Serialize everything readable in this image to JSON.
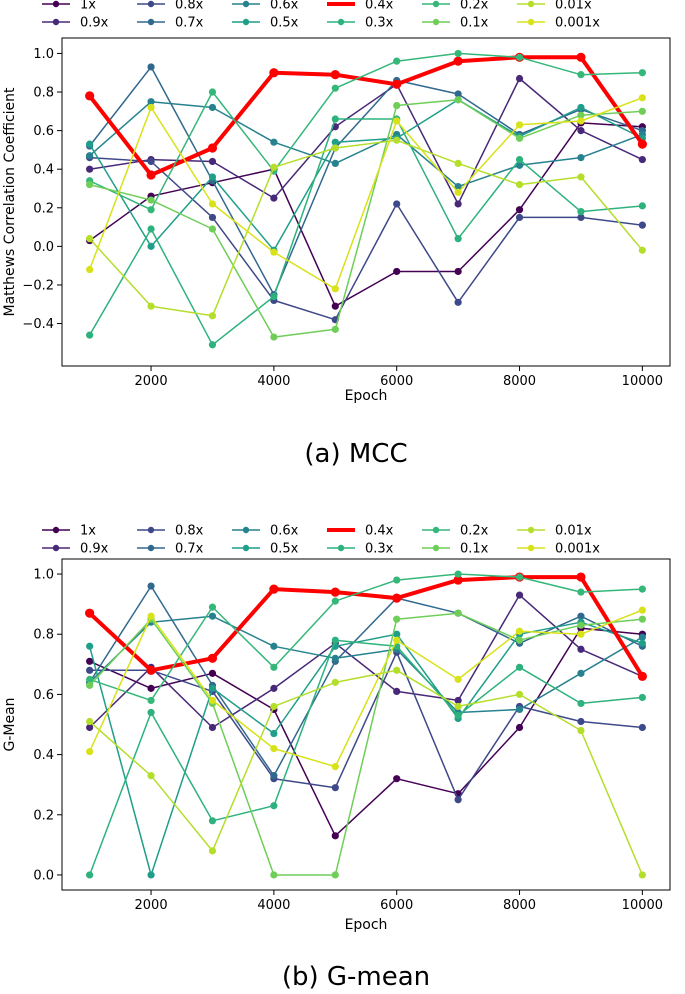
{
  "chart_data": [
    {
      "type": "line",
      "caption": "(a) MCC",
      "xlabel": "Epoch",
      "ylabel": "Matthews Correlation Coefficient",
      "xlim": [
        550,
        10450
      ],
      "ylim": [
        -0.62,
        1.08
      ],
      "xticks": [
        2000,
        4000,
        6000,
        8000,
        10000
      ],
      "xtick_labels": [
        "2000",
        "4000",
        "6000",
        "8000",
        "10000"
      ],
      "yticks": [
        -0.4,
        -0.2,
        0.0,
        0.2,
        0.4,
        0.6,
        0.8,
        1.0
      ],
      "ytick_labels": [
        "−0.4",
        "−0.2",
        "0.0",
        "0.2",
        "0.4",
        "0.6",
        "0.8",
        "1.0"
      ],
      "x": [
        1000,
        2000,
        3000,
        4000,
        5000,
        6000,
        7000,
        8000,
        9000,
        10000
      ],
      "legend_position": "top",
      "series": [
        {
          "name": "1x",
          "color": "#440154",
          "values": [
            0.03,
            0.26,
            0.33,
            0.4,
            -0.31,
            -0.13,
            -0.13,
            0.19,
            0.64,
            0.62
          ]
        },
        {
          "name": "0.9x",
          "color": "#482878",
          "values": [
            0.4,
            0.45,
            0.44,
            0.25,
            0.62,
            0.84,
            0.22,
            0.87,
            0.6,
            0.45
          ]
        },
        {
          "name": "0.8x",
          "color": "#3e4989",
          "values": [
            0.46,
            0.44,
            0.15,
            -0.28,
            -0.38,
            0.22,
            -0.29,
            0.15,
            0.15,
            0.11
          ]
        },
        {
          "name": "0.7x",
          "color": "#31688e",
          "values": [
            0.52,
            0.93,
            0.34,
            -0.25,
            0.51,
            0.86,
            0.79,
            0.58,
            0.71,
            0.6
          ]
        },
        {
          "name": "0.6x",
          "color": "#26828e",
          "values": [
            0.47,
            0.75,
            0.72,
            0.54,
            0.43,
            0.58,
            0.31,
            0.42,
            0.46,
            0.58
          ]
        },
        {
          "name": "0.5x",
          "color": "#1f9e89",
          "values": [
            0.53,
            0.0,
            0.36,
            -0.02,
            0.54,
            0.56,
            0.76,
            0.57,
            0.72,
            0.56
          ]
        },
        {
          "name": "0.4x",
          "color": "#ff0000",
          "values": [
            0.78,
            0.37,
            0.51,
            0.9,
            0.89,
            0.84,
            0.96,
            0.98,
            0.98,
            0.53
          ]
        },
        {
          "name": "0.3x",
          "color": "#2db27d",
          "values": [
            -0.46,
            0.09,
            -0.51,
            -0.26,
            0.66,
            0.66,
            0.04,
            0.45,
            0.18,
            0.21
          ]
        },
        {
          "name": "0.2x",
          "color": "#35b779",
          "values": [
            0.34,
            0.19,
            0.8,
            0.39,
            0.82,
            0.96,
            1.0,
            0.98,
            0.89,
            0.9
          ]
        },
        {
          "name": "0.1x",
          "color": "#6ece58",
          "values": [
            0.32,
            0.24,
            0.09,
            -0.47,
            -0.43,
            0.73,
            0.76,
            0.56,
            0.68,
            0.7
          ]
        },
        {
          "name": "0.01x",
          "color": "#b5de2b",
          "values": [
            0.04,
            -0.31,
            -0.36,
            0.41,
            0.51,
            0.55,
            0.43,
            0.32,
            0.36,
            -0.02
          ]
        },
        {
          "name": "0.001x",
          "color": "#d8e219",
          "values": [
            -0.12,
            0.72,
            0.22,
            -0.03,
            -0.22,
            0.65,
            0.28,
            0.63,
            0.65,
            0.77
          ]
        }
      ]
    },
    {
      "type": "line",
      "caption": "(b) G-mean",
      "xlabel": "Epoch",
      "ylabel": "G-Mean",
      "xlim": [
        550,
        10450
      ],
      "ylim": [
        -0.05,
        1.05
      ],
      "xticks": [
        2000,
        4000,
        6000,
        8000,
        10000
      ],
      "xtick_labels": [
        "2000",
        "4000",
        "6000",
        "8000",
        "10000"
      ],
      "yticks": [
        0.0,
        0.2,
        0.4,
        0.6,
        0.8,
        1.0
      ],
      "ytick_labels": [
        "0.0",
        "0.2",
        "0.4",
        "0.6",
        "0.8",
        "1.0"
      ],
      "x": [
        1000,
        2000,
        3000,
        4000,
        5000,
        6000,
        7000,
        8000,
        9000,
        10000
      ],
      "legend_position": "top",
      "series": [
        {
          "name": "1x",
          "color": "#440154",
          "values": [
            0.71,
            0.62,
            0.67,
            0.55,
            0.13,
            0.32,
            0.27,
            0.49,
            0.82,
            0.8
          ]
        },
        {
          "name": "0.9x",
          "color": "#482878",
          "values": [
            0.49,
            0.69,
            0.49,
            0.62,
            0.77,
            0.61,
            0.58,
            0.93,
            0.75,
            0.66
          ]
        },
        {
          "name": "0.8x",
          "color": "#3e4989",
          "values": [
            0.68,
            0.68,
            0.61,
            0.32,
            0.29,
            0.74,
            0.25,
            0.56,
            0.51,
            0.49
          ]
        },
        {
          "name": "0.7x",
          "color": "#31688e",
          "values": [
            0.64,
            0.96,
            0.63,
            0.33,
            0.71,
            0.92,
            0.87,
            0.77,
            0.86,
            0.76
          ]
        },
        {
          "name": "0.6x",
          "color": "#26828e",
          "values": [
            0.64,
            0.84,
            0.86,
            0.76,
            0.72,
            0.75,
            0.54,
            0.55,
            0.67,
            0.79
          ]
        },
        {
          "name": "0.5x",
          "color": "#1f9e89",
          "values": [
            0.76,
            0.0,
            0.62,
            0.47,
            0.76,
            0.8,
            0.52,
            0.8,
            0.84,
            0.77
          ]
        },
        {
          "name": "0.4x",
          "color": "#ff0000",
          "values": [
            0.87,
            0.68,
            0.72,
            0.95,
            0.94,
            0.92,
            0.98,
            0.99,
            0.99,
            0.66
          ]
        },
        {
          "name": "0.3x",
          "color": "#2db27d",
          "values": [
            0.0,
            0.54,
            0.18,
            0.23,
            0.78,
            0.76,
            0.53,
            0.69,
            0.57,
            0.59
          ]
        },
        {
          "name": "0.2x",
          "color": "#35b779",
          "values": [
            0.65,
            0.58,
            0.89,
            0.69,
            0.91,
            0.98,
            1.0,
            0.99,
            0.94,
            0.95
          ]
        },
        {
          "name": "0.1x",
          "color": "#6ece58",
          "values": [
            0.63,
            0.85,
            0.57,
            0.0,
            0.0,
            0.85,
            0.87,
            0.78,
            0.83,
            0.85
          ]
        },
        {
          "name": "0.01x",
          "color": "#b5de2b",
          "values": [
            0.51,
            0.33,
            0.08,
            0.56,
            0.64,
            0.68,
            0.56,
            0.6,
            0.48,
            0.0
          ]
        },
        {
          "name": "0.001x",
          "color": "#d8e219",
          "values": [
            0.41,
            0.86,
            0.58,
            0.42,
            0.36,
            0.78,
            0.65,
            0.81,
            0.8,
            0.88
          ]
        }
      ]
    }
  ]
}
